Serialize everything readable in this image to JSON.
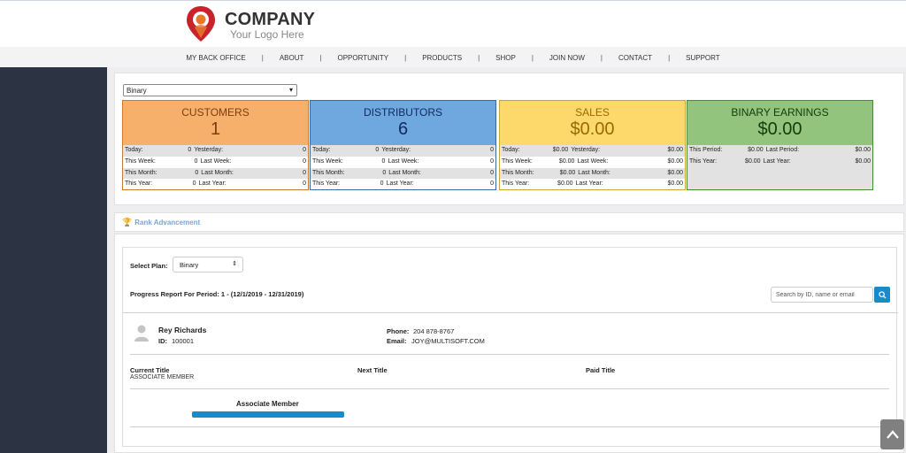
{
  "brand": {
    "company": "COMPANY",
    "tagline": "Your Logo Here",
    "accent": "#c8232a"
  },
  "nav": {
    "items": [
      "MY BACK OFFICE",
      "ABOUT",
      "OPPORTUNITY",
      "PRODUCTS",
      "SHOP",
      "JOIN NOW",
      "CONTACT",
      "SUPPORT"
    ],
    "separator": "|"
  },
  "stats": {
    "plan_select": "Binary",
    "cards": {
      "customers": {
        "title": "CUSTOMERS",
        "value": "1",
        "rows": [
          [
            "Today:",
            "0",
            "Yesterday:",
            "0"
          ],
          [
            "This Week:",
            "0",
            "Last Week:",
            "0"
          ],
          [
            "This Month:",
            "0",
            "Last Month:",
            "0"
          ],
          [
            "This Year:",
            "0",
            "Last Year:",
            "0"
          ]
        ]
      },
      "distributors": {
        "title": "DISTRIBUTORS",
        "value": "6",
        "rows": [
          [
            "Today:",
            "0",
            "Yesterday:",
            "0"
          ],
          [
            "This Week:",
            "0",
            "Last Week:",
            "0"
          ],
          [
            "This Month:",
            "0",
            "Last Month:",
            "0"
          ],
          [
            "This Year:",
            "0",
            "Last Year:",
            "0"
          ]
        ]
      },
      "sales": {
        "title": "SALES",
        "value": "$0.00",
        "rows": [
          [
            "Today:",
            "$0.00",
            "Yesterday:",
            "$0.00"
          ],
          [
            "This Week:",
            "$0.00",
            "Last Week:",
            "$0.00"
          ],
          [
            "This Month:",
            "$0.00",
            "Last Month:",
            "$0.00"
          ],
          [
            "This Year:",
            "$0.00",
            "Last Year:",
            "$0.00"
          ]
        ]
      },
      "binary": {
        "title": "BINARY EARNINGS",
        "value": "$0.00",
        "rows": [
          [
            "This Period:",
            "$0.00",
            "Last Period:",
            "$0.00"
          ],
          [
            "This Year:",
            "$0.00",
            "Last Year:",
            "$0.00"
          ]
        ]
      }
    }
  },
  "rank": {
    "header": "Rank Advancement",
    "select_plan_label": "Select Plan:",
    "select_plan_value": "Binary",
    "progress_title": "Progress Report For Period: 1 - (12/1/2019 - 12/31/2019)",
    "search_placeholder": "Search by ID, name or email",
    "member": {
      "name": "Rey Richards",
      "id_label": "ID:",
      "id": "100001",
      "phone_label": "Phone:",
      "phone": "204 878-8767",
      "email_label": "Email:",
      "email": "JOY@MULTISOFT.COM"
    },
    "titles": {
      "current_label": "Current Title",
      "current_value": "ASSOCIATE MEMBER",
      "next_label": "Next Title",
      "paid_label": "Paid Title"
    },
    "progress": {
      "label": "Associate Member",
      "percent": 100
    }
  }
}
